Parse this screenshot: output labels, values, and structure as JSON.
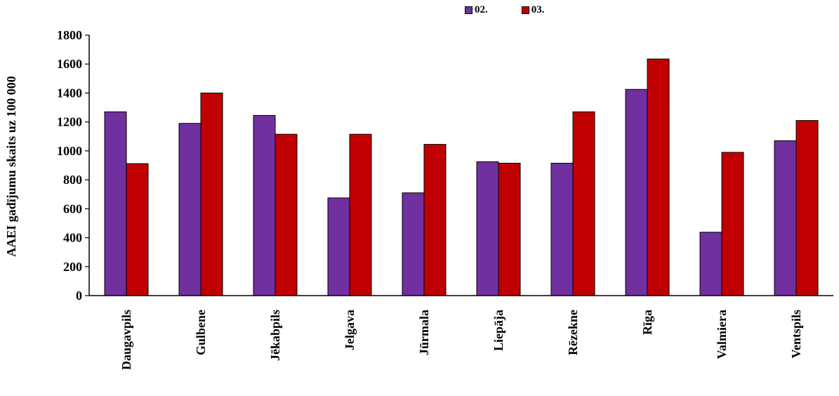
{
  "chart_data": {
    "type": "bar",
    "ylabel": "AAEI gadījumu skaits uz 100 000",
    "xlabel": "",
    "categories": [
      "Daugavpils",
      "Gulbene",
      "Jēkabpils",
      "Jelgava",
      "Jūrmala",
      "Liepāja",
      "Rēzekne",
      "Rīga",
      "Valmiera",
      "Ventspils"
    ],
    "series": [
      {
        "name": "02.",
        "color": "#7030a0",
        "values": [
          1270,
          1190,
          1245,
          675,
          710,
          925,
          915,
          1425,
          438,
          1070
        ]
      },
      {
        "name": "03.",
        "color": "#c00000",
        "values": [
          912,
          1400,
          1115,
          1115,
          1045,
          915,
          1270,
          1635,
          990,
          1210
        ]
      }
    ],
    "ylim": [
      0,
      1800
    ],
    "yticks": [
      "0",
      "200",
      "400",
      "600",
      "800",
      "1000",
      "1200",
      "1400",
      "1600",
      "1800"
    ],
    "grid": false,
    "legend_position": "top"
  }
}
